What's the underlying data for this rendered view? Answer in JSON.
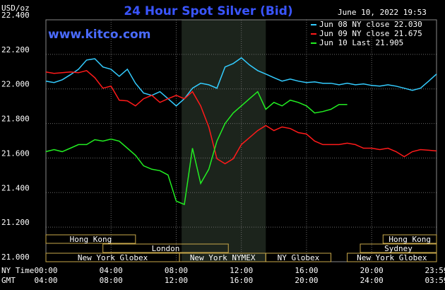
{
  "chart_data": {
    "type": "line",
    "title": "24 Hour Spot Silver (Bid)",
    "timestamp": "June 10, 2022 19:53",
    "y_label": "USD/oz",
    "watermark": "www.kitco.com",
    "x_axis_labels": [
      "NY Time",
      "GMT"
    ],
    "x": [
      0,
      0.5,
      1,
      1.5,
      2,
      2.5,
      3,
      3.5,
      4,
      4.5,
      5,
      5.5,
      6,
      6.5,
      7,
      7.5,
      8,
      8.5,
      9,
      9.5,
      10,
      10.5,
      11,
      11.5,
      12,
      12.5,
      13,
      13.5,
      14,
      14.5,
      15,
      15.5,
      16,
      16.5,
      17,
      17.5,
      18,
      18.5,
      19,
      19.5,
      20,
      20.5,
      21,
      21.5,
      22,
      22.5,
      23,
      23.5,
      23.983
    ],
    "xlim": [
      0,
      23.983
    ],
    "xticks": [
      {
        "value": 0,
        "label": "00:00"
      },
      {
        "value": 4,
        "label": "04:00"
      },
      {
        "value": 8,
        "label": "08:00"
      },
      {
        "value": 12,
        "label": "12:00"
      },
      {
        "value": 16,
        "label": "16:00"
      },
      {
        "value": 20,
        "label": "20:00"
      },
      {
        "value": 23.983,
        "label": "23:59"
      }
    ],
    "x2_tick_labels": [
      "04:00",
      "08:00",
      "12:00",
      "16:00",
      "20:00",
      "24:00",
      "03:59"
    ],
    "ylim": [
      21.0,
      22.4
    ],
    "yticks": [
      {
        "value": 21.0,
        "label": "21.000"
      },
      {
        "value": 21.2,
        "label": "21.200"
      },
      {
        "value": 21.4,
        "label": "21.400"
      },
      {
        "value": 21.6,
        "label": "21.600"
      },
      {
        "value": 21.8,
        "label": "21.800"
      },
      {
        "value": 22.0,
        "label": "22.000"
      },
      {
        "value": 22.2,
        "label": "22.200"
      },
      {
        "value": 22.4,
        "label": "22.400"
      }
    ],
    "grid": true,
    "highlight": [
      8.333,
      13.5
    ],
    "sessions": [
      {
        "label": "Hong Kong",
        "start": 0,
        "end": 5.5,
        "row": 0
      },
      {
        "label": "Hong Kong",
        "start": 20.7,
        "end": 23.983,
        "row": 0
      },
      {
        "label": "London",
        "start": 3.5,
        "end": 11.2,
        "row": 1
      },
      {
        "label": "Sydney",
        "start": 19.3,
        "end": 23.983,
        "row": 1
      },
      {
        "label": "New York Globex",
        "start": 0,
        "end": 8.2,
        "row": 2
      },
      {
        "label": "New York NYMEX",
        "start": 8.2,
        "end": 13.5,
        "row": 2
      },
      {
        "label": "NY Globex",
        "start": 13.5,
        "end": 17.5,
        "row": 2
      },
      {
        "label": "New York Globex",
        "start": 18.5,
        "end": 23.983,
        "row": 2
      }
    ],
    "series": [
      {
        "name": "Jun 08 NY close 22.030",
        "color": "#33ccff",
        "values": [
          22.045,
          22.037,
          22.053,
          22.082,
          22.114,
          22.167,
          22.175,
          22.127,
          22.114,
          22.073,
          22.114,
          22.033,
          21.976,
          21.963,
          21.984,
          21.943,
          21.902,
          21.943,
          22.004,
          22.033,
          22.024,
          22.004,
          22.127,
          22.147,
          22.18,
          22.139,
          22.106,
          22.086,
          22.065,
          22.045,
          22.057,
          22.045,
          22.037,
          22.041,
          22.033,
          22.033,
          22.024,
          22.033,
          22.024,
          22.029,
          22.02,
          22.016,
          22.024,
          22.016,
          22.004,
          21.992,
          22.004,
          22.045,
          22.086
        ]
      },
      {
        "name": "Jun 09 NY close 21.675",
        "color": "#ff1a1a",
        "values": [
          22.098,
          22.09,
          22.094,
          22.098,
          22.094,
          22.106,
          22.065,
          22.004,
          22.016,
          21.935,
          21.931,
          21.902,
          21.943,
          21.963,
          21.922,
          21.943,
          21.963,
          21.943,
          21.984,
          21.902,
          21.78,
          21.596,
          21.567,
          21.596,
          21.678,
          21.718,
          21.759,
          21.788,
          21.759,
          21.78,
          21.771,
          21.747,
          21.739,
          21.698,
          21.678,
          21.678,
          21.678,
          21.686,
          21.678,
          21.657,
          21.657,
          21.649,
          21.657,
          21.637,
          21.608,
          21.637,
          21.649,
          21.645,
          21.641
        ]
      },
      {
        "name": "Jun 10 Last 21.905",
        "color": "#22ee22",
        "values": [
          21.637,
          21.649,
          21.637,
          21.657,
          21.678,
          21.678,
          21.706,
          21.698,
          21.71,
          21.698,
          21.657,
          21.616,
          21.555,
          21.535,
          21.527,
          21.502,
          21.351,
          21.331,
          21.657,
          21.453,
          21.535,
          21.698,
          21.8,
          21.861,
          21.902,
          21.943,
          21.984,
          21.882,
          21.922,
          21.902,
          21.935,
          21.922,
          21.902,
          21.861,
          21.869,
          21.882,
          21.91,
          21.91,
          null,
          null,
          null,
          null,
          null,
          null,
          null,
          null,
          null,
          null,
          null
        ]
      }
    ]
  }
}
